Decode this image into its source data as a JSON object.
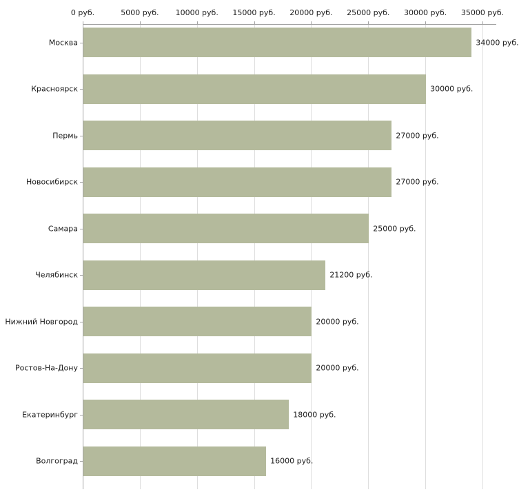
{
  "chart_data": {
    "type": "bar",
    "orientation": "horizontal",
    "title": "",
    "categories": [
      "Москва",
      "Красноярск",
      "Пермь",
      "Новосибирск",
      "Самара",
      "Челябинск",
      "Нижний Новгород",
      "Ростов-На-Дону",
      "Екатеринбург",
      "Волгоград"
    ],
    "values": [
      34000,
      30000,
      27000,
      27000,
      25000,
      21200,
      20000,
      20000,
      18000,
      16000
    ],
    "value_labels": [
      "34000 руб.",
      "30000 руб.",
      "27000 руб.",
      "27000 руб.",
      "25000 руб.",
      "21200 руб.",
      "20000 руб.",
      "20000 руб.",
      "18000 руб.",
      "16000 руб."
    ],
    "x_ticks": [
      0,
      5000,
      10000,
      15000,
      20000,
      25000,
      30000,
      35000
    ],
    "x_tick_labels": [
      "0 руб.",
      "5000 руб.",
      "10000 руб.",
      "15000 руб.",
      "20000 руб.",
      "25000 руб.",
      "30000 руб.",
      "35000 руб."
    ],
    "xlim": [
      0,
      35000
    ],
    "bar_color": "#b4ba9c",
    "grid": true,
    "legend": false,
    "axis_position": "top"
  }
}
